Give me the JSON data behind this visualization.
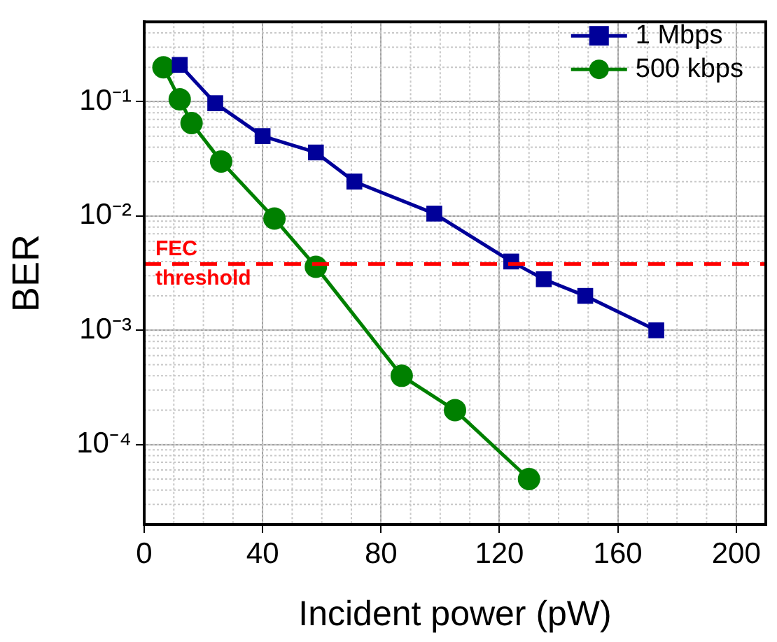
{
  "chart_data": {
    "type": "line",
    "xlabel": "Incident power (pW)",
    "ylabel": "BER",
    "log": "y",
    "grid": true,
    "legend": "top right",
    "line_style": "solid",
    "xlim": [
      0,
      210
    ],
    "xticks": [
      0,
      40,
      80,
      120,
      160,
      200
    ],
    "ylim": [
      2e-05,
      0.5
    ],
    "yticks": [
      {
        "value": 0.1,
        "label": "10⁻¹"
      },
      {
        "value": 0.01,
        "label": "10⁻²"
      },
      {
        "value": 0.001,
        "label": "10⁻³"
      },
      {
        "value": 0.0001,
        "label": "10⁻⁴"
      }
    ],
    "ref_lines": [
      {
        "axis": "y",
        "value": 0.0038,
        "label": "FEC\nthreshold",
        "color": "#ff0000",
        "line_style": "dashed"
      }
    ],
    "series": [
      {
        "name": "1 Mbps",
        "color": "#000099",
        "marker": "square",
        "x": [
          12,
          24,
          40,
          58,
          71,
          98,
          124,
          135,
          149,
          173
        ],
        "values": [
          0.21,
          0.097,
          0.05,
          0.036,
          0.02,
          0.0105,
          0.004,
          0.0028,
          0.002,
          0.001
        ]
      },
      {
        "name": "500 kbps",
        "color": "#008000",
        "marker": "circle",
        "x": [
          6.5,
          12,
          16,
          26,
          44,
          58,
          87,
          105,
          130
        ],
        "values": [
          0.2,
          0.105,
          0.065,
          0.03,
          0.0095,
          0.0036,
          0.0004,
          0.0002,
          5e-05
        ]
      }
    ]
  }
}
